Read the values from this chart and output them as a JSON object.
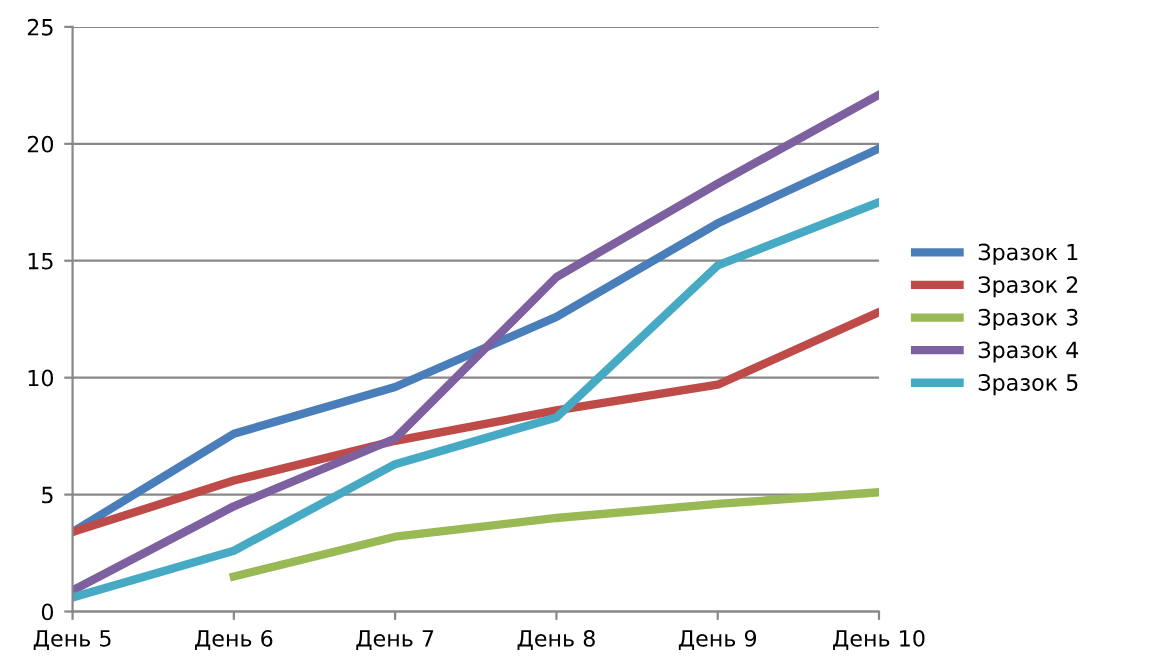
{
  "chart_data": {
    "type": "line",
    "categories": [
      "День 5",
      "День 6",
      "День 7",
      "День 8",
      "День 9",
      "День 10"
    ],
    "series": [
      {
        "name": "Зразок 1",
        "color": "#4a7ebb",
        "values": [
          3.4,
          7.6,
          9.6,
          12.6,
          16.6,
          19.8
        ]
      },
      {
        "name": "Зразок 2",
        "color": "#be4b48",
        "values": [
          3.4,
          5.6,
          7.3,
          8.6,
          9.7,
          12.8
        ]
      },
      {
        "name": "Зразок 3",
        "color": "#98b954",
        "values": [
          null,
          1.5,
          3.2,
          4.0,
          4.6,
          5.1
        ]
      },
      {
        "name": "Зразок 4",
        "color": "#7d60a0",
        "values": [
          0.9,
          4.5,
          7.4,
          14.3,
          18.3,
          22.1
        ]
      },
      {
        "name": "Зразок 5",
        "color": "#46aac5",
        "values": [
          0.6,
          2.6,
          6.3,
          8.3,
          14.8,
          17.5
        ]
      }
    ],
    "ylim": [
      0,
      25
    ],
    "yticks": [
      0,
      5,
      10,
      15,
      20,
      25
    ],
    "grid": "y",
    "legend": "right",
    "marker": "none",
    "line_style": "solid"
  }
}
